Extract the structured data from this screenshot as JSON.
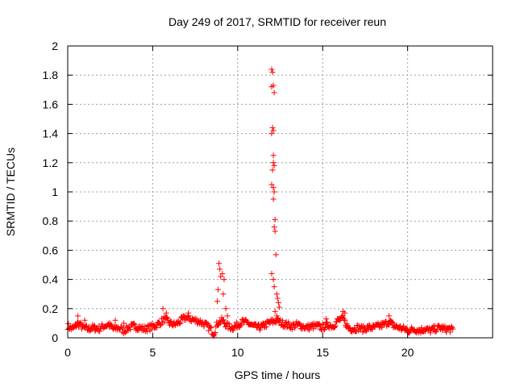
{
  "chart_data": {
    "type": "scatter",
    "title": "Day 249 of 2017, SRMTID for receiver reun",
    "xlabel": "GPS time / hours",
    "ylabel": "SRMTID / TECUs",
    "xlim": [
      0,
      25
    ],
    "ylim": [
      0,
      2
    ],
    "xticks": [
      0,
      5,
      10,
      15,
      20
    ],
    "yticks": [
      0,
      0.2,
      0.4,
      0.6,
      0.8,
      1,
      1.2,
      1.4,
      1.6,
      1.8,
      2
    ],
    "ytick_labels": [
      "0",
      "0.2",
      "0.4",
      "0.6",
      "0.8",
      "1",
      "1.2",
      "1.4",
      "1.6",
      "1.8",
      "2"
    ],
    "grid": true,
    "marker": "+",
    "series": [
      {
        "name": "SRMTID",
        "color": "#ff0000",
        "baseline": [
          [
            0.0,
            0.08
          ],
          [
            0.3,
            0.06
          ],
          [
            0.6,
            0.1
          ],
          [
            0.9,
            0.07
          ],
          [
            1.2,
            0.06
          ],
          [
            1.5,
            0.07
          ],
          [
            1.8,
            0.06
          ],
          [
            2.1,
            0.08
          ],
          [
            2.4,
            0.09
          ],
          [
            2.7,
            0.06
          ],
          [
            3.0,
            0.07
          ],
          [
            3.3,
            0.05
          ],
          [
            3.6,
            0.07
          ],
          [
            3.9,
            0.08
          ],
          [
            4.2,
            0.07
          ],
          [
            4.5,
            0.06
          ],
          [
            4.8,
            0.07
          ],
          [
            5.1,
            0.08
          ],
          [
            5.4,
            0.1
          ],
          [
            5.7,
            0.13
          ],
          [
            6.0,
            0.1
          ],
          [
            6.3,
            0.09
          ],
          [
            6.6,
            0.11
          ],
          [
            6.9,
            0.14
          ],
          [
            7.2,
            0.13
          ],
          [
            7.5,
            0.12
          ],
          [
            7.8,
            0.11
          ],
          [
            8.1,
            0.09
          ],
          [
            8.4,
            0.06
          ],
          [
            8.6,
            0.03
          ],
          [
            8.8,
            0.1
          ],
          [
            9.1,
            0.12
          ],
          [
            9.4,
            0.08
          ],
          [
            9.7,
            0.07
          ],
          [
            10.0,
            0.09
          ],
          [
            10.3,
            0.11
          ],
          [
            10.6,
            0.1
          ],
          [
            10.9,
            0.08
          ],
          [
            11.2,
            0.07
          ],
          [
            11.5,
            0.08
          ],
          [
            11.8,
            0.1
          ],
          [
            12.3,
            0.12
          ],
          [
            12.6,
            0.1
          ],
          [
            12.9,
            0.09
          ],
          [
            13.2,
            0.08
          ],
          [
            13.5,
            0.09
          ],
          [
            13.8,
            0.08
          ],
          [
            14.1,
            0.07
          ],
          [
            14.4,
            0.08
          ],
          [
            14.7,
            0.08
          ],
          [
            15.0,
            0.07
          ],
          [
            15.3,
            0.09
          ],
          [
            15.6,
            0.08
          ],
          [
            15.9,
            0.12
          ],
          [
            16.2,
            0.13
          ],
          [
            16.5,
            0.07
          ],
          [
            16.8,
            0.06
          ],
          [
            17.1,
            0.07
          ],
          [
            17.4,
            0.06
          ],
          [
            17.7,
            0.07
          ],
          [
            18.0,
            0.07
          ],
          [
            18.3,
            0.08
          ],
          [
            18.6,
            0.09
          ],
          [
            18.9,
            0.11
          ],
          [
            19.2,
            0.08
          ],
          [
            19.5,
            0.07
          ],
          [
            19.8,
            0.06
          ],
          [
            20.1,
            0.05
          ],
          [
            20.4,
            0.06
          ],
          [
            20.7,
            0.05
          ],
          [
            21.0,
            0.06
          ],
          [
            21.3,
            0.05
          ],
          [
            21.6,
            0.06
          ],
          [
            21.9,
            0.07
          ],
          [
            22.2,
            0.06
          ],
          [
            22.5,
            0.06
          ],
          [
            22.7,
            0.05
          ]
        ],
        "peaks": [
          [
            0.6,
            0.15
          ],
          [
            1.0,
            0.12
          ],
          [
            2.8,
            0.12
          ],
          [
            3.3,
            0.1
          ],
          [
            5.6,
            0.2
          ],
          [
            5.8,
            0.17
          ],
          [
            7.1,
            0.17
          ],
          [
            8.9,
            0.51
          ],
          [
            8.95,
            0.47
          ],
          [
            9.0,
            0.42
          ],
          [
            9.1,
            0.44
          ],
          [
            9.2,
            0.4
          ],
          [
            8.85,
            0.33
          ],
          [
            8.8,
            0.25
          ],
          [
            9.15,
            0.3
          ],
          [
            9.3,
            0.2
          ],
          [
            9.4,
            0.15
          ],
          [
            12.0,
            1.84
          ],
          [
            12.05,
            1.82
          ],
          [
            12.0,
            1.72
          ],
          [
            12.1,
            1.73
          ],
          [
            12.15,
            1.68
          ],
          [
            12.05,
            1.44
          ],
          [
            12.1,
            1.42
          ],
          [
            12.0,
            1.4
          ],
          [
            12.1,
            1.25
          ],
          [
            12.1,
            1.2
          ],
          [
            12.15,
            1.18
          ],
          [
            12.05,
            1.15
          ],
          [
            12.0,
            1.05
          ],
          [
            12.1,
            1.03
          ],
          [
            12.15,
            1.0
          ],
          [
            12.1,
            0.95
          ],
          [
            12.2,
            0.81
          ],
          [
            12.15,
            0.76
          ],
          [
            12.2,
            0.73
          ],
          [
            12.25,
            0.57
          ],
          [
            12.0,
            0.44
          ],
          [
            12.1,
            0.4
          ],
          [
            12.15,
            0.35
          ],
          [
            12.3,
            0.3
          ],
          [
            12.35,
            0.27
          ],
          [
            12.4,
            0.24
          ],
          [
            12.45,
            0.21
          ],
          [
            12.2,
            0.18
          ],
          [
            12.3,
            0.15
          ],
          [
            15.2,
            0.13
          ],
          [
            16.2,
            0.18
          ],
          [
            16.3,
            0.17
          ],
          [
            18.9,
            0.15
          ],
          [
            19.0,
            0.12
          ]
        ]
      }
    ]
  }
}
